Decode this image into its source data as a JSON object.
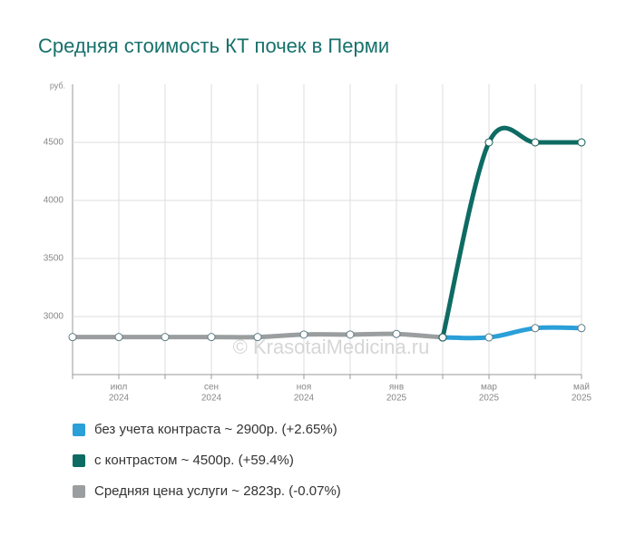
{
  "chart_data": {
    "type": "line",
    "title": "Средняя стоимость КТ почек в Перми",
    "y_unit": "руб.",
    "watermark": "© KrasotaiMedicina.ru",
    "categories": [
      null,
      "июл",
      null,
      "сен",
      null,
      "ноя",
      null,
      "янв",
      null,
      "мар",
      null,
      "май"
    ],
    "category_years": [
      null,
      "2024",
      null,
      "2024",
      null,
      "2024",
      null,
      "2025",
      null,
      "2025",
      null,
      "2025"
    ],
    "series": [
      {
        "name": "без учета контраста ~ 2900р. (+2.65%)",
        "color": "#2a9fd8",
        "values": [
          null,
          null,
          null,
          null,
          null,
          null,
          null,
          null,
          2820,
          2820,
          2900,
          2900
        ]
      },
      {
        "name": "с контрастом ~ 4500р. (+59.4%)",
        "color": "#0e6b63",
        "values": [
          null,
          null,
          null,
          null,
          null,
          null,
          null,
          null,
          2820,
          4500,
          4500,
          4500
        ]
      },
      {
        "name": "Средняя цена услуги ~ 2823р. (-0.07%)",
        "color": "#9a9e9f",
        "values": [
          2823,
          2823,
          2823,
          2823,
          2823,
          2845,
          2845,
          2850,
          2820,
          null,
          null,
          null
        ]
      }
    ],
    "ylim": [
      2500,
      5000
    ],
    "yticks": [
      3000,
      3500,
      4000,
      4500
    ],
    "grid": true
  }
}
